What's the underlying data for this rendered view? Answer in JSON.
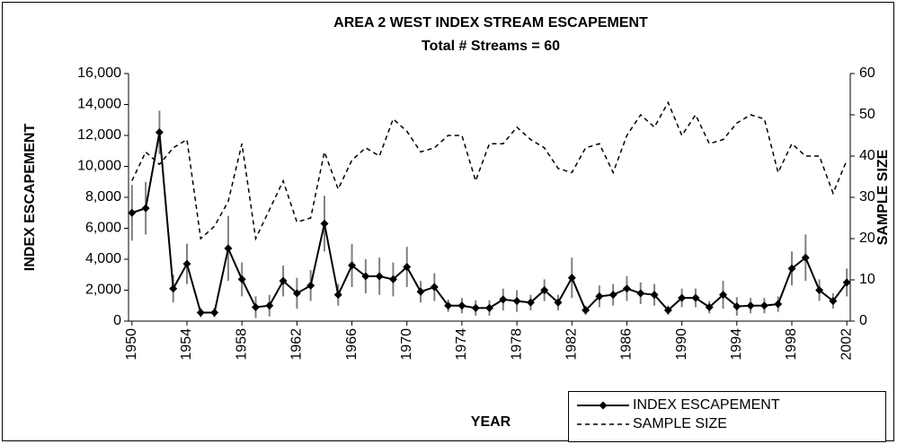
{
  "chart_data": {
    "type": "line",
    "title": "AREA 2 WEST INDEX STREAM ESCAPEMENT",
    "subtitle": "Total # Streams = 60",
    "x_label": "YEAR",
    "y_label": "INDEX ESCAPEMENT",
    "y2_label": "SAMPLE SIZE",
    "x": [
      1950,
      1951,
      1952,
      1953,
      1954,
      1955,
      1956,
      1957,
      1958,
      1959,
      1960,
      1961,
      1962,
      1963,
      1964,
      1965,
      1966,
      1967,
      1968,
      1969,
      1970,
      1971,
      1972,
      1973,
      1974,
      1975,
      1976,
      1977,
      1978,
      1979,
      1980,
      1981,
      1982,
      1983,
      1984,
      1985,
      1986,
      1987,
      1988,
      1989,
      1990,
      1991,
      1992,
      1993,
      1994,
      1995,
      1996,
      1997,
      1998,
      1999,
      2000,
      2001,
      2002
    ],
    "xlim": [
      1949.75,
      2002.25
    ],
    "xticks": [
      1950,
      1954,
      1958,
      1962,
      1966,
      1970,
      1974,
      1978,
      1982,
      1986,
      1990,
      1994,
      1998,
      2002
    ],
    "ylim": [
      0,
      16000
    ],
    "yticks": [
      0,
      {
        "value": 2000,
        "label": "2,000"
      },
      {
        "value": 4000,
        "label": "4,000"
      },
      {
        "value": 6000,
        "label": "6,000"
      },
      {
        "value": 8000,
        "label": "8,000"
      },
      {
        "value": 10000,
        "label": "10,000"
      },
      {
        "value": 12000,
        "label": "12,000"
      },
      {
        "value": 14000,
        "label": "14,000"
      },
      {
        "value": 16000,
        "label": "16,000"
      }
    ],
    "y2lim": [
      0,
      60
    ],
    "y2ticks": [
      0,
      10,
      20,
      30,
      40,
      50,
      60
    ],
    "legend": "bottom-right",
    "series": [
      {
        "name": "INDEX ESCAPEMENT",
        "color": "#000000",
        "error_color": "#808080",
        "marker": "diamond",
        "dash": "solid",
        "values": [
          7000,
          7300,
          12200,
          2100,
          3700,
          550,
          550,
          4700,
          2700,
          900,
          1000,
          2600,
          1800,
          2300,
          6300,
          1700,
          3600,
          2900,
          2900,
          2700,
          3500,
          1900,
          2200,
          1000,
          1000,
          850,
          850,
          1400,
          1300,
          1200,
          2000,
          1200,
          2800,
          700,
          1600,
          1700,
          2100,
          1800,
          1700,
          700,
          1500,
          1500,
          900,
          1700,
          950,
          1000,
          1000,
          1100,
          3400,
          4100,
          2000,
          1300,
          2500
        ],
        "errors": [
          1800,
          1700,
          1400,
          900,
          1300,
          300,
          300,
          2100,
          1100,
          700,
          700,
          1000,
          1000,
          1000,
          1800,
          700,
          1400,
          1100,
          1200,
          1100,
          1300,
          700,
          900,
          400,
          500,
          500,
          500,
          700,
          700,
          500,
          700,
          500,
          1300,
          300,
          700,
          700,
          800,
          700,
          700,
          300,
          600,
          600,
          400,
          900,
          600,
          500,
          500,
          500,
          1100,
          1500,
          700,
          500,
          900
        ]
      },
      {
        "name": "SAMPLE SIZE",
        "color": "#000000",
        "axis": "y2",
        "dash": "dashed",
        "values": [
          34,
          41,
          38,
          42,
          44,
          20,
          23,
          29,
          43,
          20,
          27,
          34,
          24,
          25,
          41,
          32,
          39,
          42,
          40,
          49,
          46,
          41,
          42,
          45,
          45,
          34,
          43,
          43,
          47,
          44,
          42,
          37,
          36,
          42,
          43,
          36,
          45,
          50,
          47,
          53,
          45,
          50,
          43,
          44,
          48,
          50,
          49,
          36,
          43,
          40,
          40,
          31,
          39
        ]
      }
    ]
  }
}
